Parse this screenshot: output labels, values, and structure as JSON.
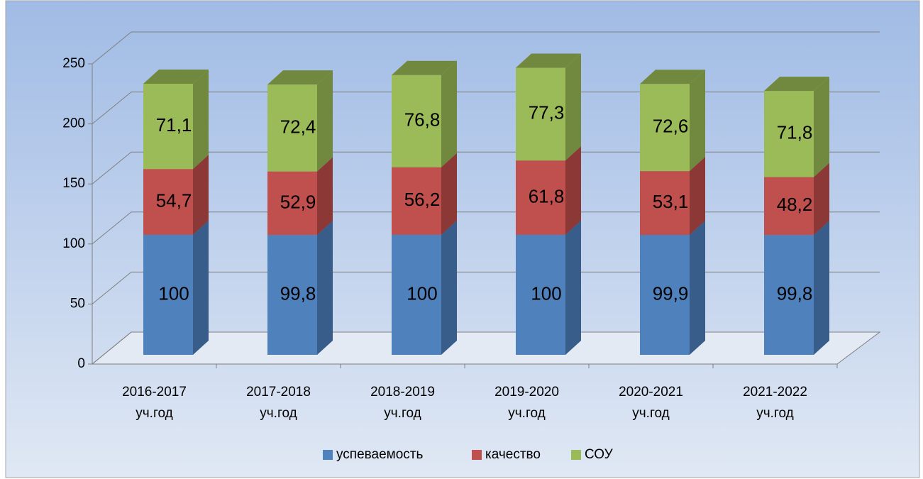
{
  "chart_data": {
    "type": "bar3d_stacked",
    "categories": [
      "2016-2017 уч.год",
      "2017-2018 уч.год",
      "2018-2019 уч.год",
      "2019-2020 уч.год",
      "2020-2021 уч.год",
      "2021-2022 уч.год"
    ],
    "series": [
      {
        "name": "успеваемость",
        "color": "#4f81bd",
        "side": "#385d8a",
        "values": [
          100,
          99.8,
          100,
          100,
          99.9,
          99.8
        ],
        "value_labels": [
          "100",
          "99,8",
          "100",
          "100",
          "99,9",
          "99,8"
        ]
      },
      {
        "name": "качество",
        "color": "#c0504d",
        "side": "#8c3836",
        "values": [
          54.7,
          52.9,
          56.2,
          61.8,
          53.1,
          48.2
        ],
        "value_labels": [
          "54,7",
          "52,9",
          "56,2",
          "61,8",
          "53,1",
          "48,2"
        ]
      },
      {
        "name": "СОУ",
        "color": "#9bbb59",
        "side": "#71893f",
        "values": [
          71.1,
          72.4,
          76.8,
          77.3,
          72.6,
          71.8
        ],
        "value_labels": [
          "71,1",
          "72,4",
          "76,8",
          "77,3",
          "72,6",
          "71,8"
        ]
      }
    ],
    "ylim": [
      0,
      250
    ],
    "yticks": [
      0,
      50,
      100,
      150,
      200,
      250
    ],
    "grid": true,
    "legend": "bottom"
  }
}
